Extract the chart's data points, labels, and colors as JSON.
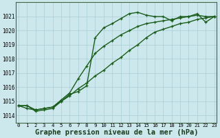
{
  "bg_color": "#cce8ed",
  "grid_color": "#aacdd4",
  "line_color": "#1a5c1a",
  "xlabel": "Graphe pression niveau de la mer (hPa)",
  "xlabel_fontsize": 7.5,
  "ylim": [
    1013.5,
    1022.0
  ],
  "xlim": [
    -0.3,
    23.3
  ],
  "yticks": [
    1014,
    1015,
    1016,
    1017,
    1018,
    1019,
    1020,
    1021
  ],
  "xticks": [
    0,
    1,
    2,
    3,
    4,
    5,
    6,
    7,
    8,
    9,
    10,
    11,
    12,
    13,
    14,
    15,
    16,
    17,
    18,
    19,
    20,
    21,
    22,
    23
  ],
  "line1_x": [
    0,
    1,
    2,
    3,
    4,
    5,
    6,
    7,
    8,
    9,
    10,
    11,
    12,
    13,
    14,
    15,
    16,
    17,
    18,
    19,
    20,
    21,
    22,
    23
  ],
  "line1_y": [
    1014.7,
    1014.7,
    1014.3,
    1014.4,
    1014.5,
    1015.0,
    1015.5,
    1015.7,
    1016.1,
    1019.5,
    1020.2,
    1020.5,
    1020.85,
    1021.2,
    1021.3,
    1021.1,
    1021.0,
    1021.0,
    1020.7,
    1021.0,
    1021.0,
    1021.2,
    1020.6,
    1021.0
  ],
  "line2_x": [
    0,
    1,
    2,
    3,
    4,
    5,
    6,
    7,
    8,
    9,
    10,
    11,
    12,
    13,
    14,
    15,
    16,
    17,
    18,
    19,
    20,
    21,
    22,
    23
  ],
  "line2_y": [
    1014.7,
    1014.7,
    1014.4,
    1014.5,
    1014.6,
    1015.1,
    1015.6,
    1016.6,
    1017.5,
    1018.4,
    1018.9,
    1019.3,
    1019.7,
    1020.0,
    1020.3,
    1020.5,
    1020.6,
    1020.7,
    1020.8,
    1020.9,
    1021.0,
    1021.1,
    1021.0,
    1021.0
  ],
  "line3_x": [
    0,
    1,
    2,
    3,
    4,
    5,
    6,
    7,
    8,
    9,
    10,
    11,
    12,
    13,
    14,
    15,
    16,
    17,
    18,
    19,
    20,
    21,
    22,
    23
  ],
  "line3_y": [
    1014.7,
    1014.5,
    1014.4,
    1014.5,
    1014.6,
    1015.0,
    1015.4,
    1015.9,
    1016.3,
    1016.8,
    1017.2,
    1017.7,
    1018.1,
    1018.6,
    1019.0,
    1019.5,
    1019.9,
    1020.1,
    1020.3,
    1020.5,
    1020.6,
    1020.8,
    1020.9,
    1021.0
  ]
}
